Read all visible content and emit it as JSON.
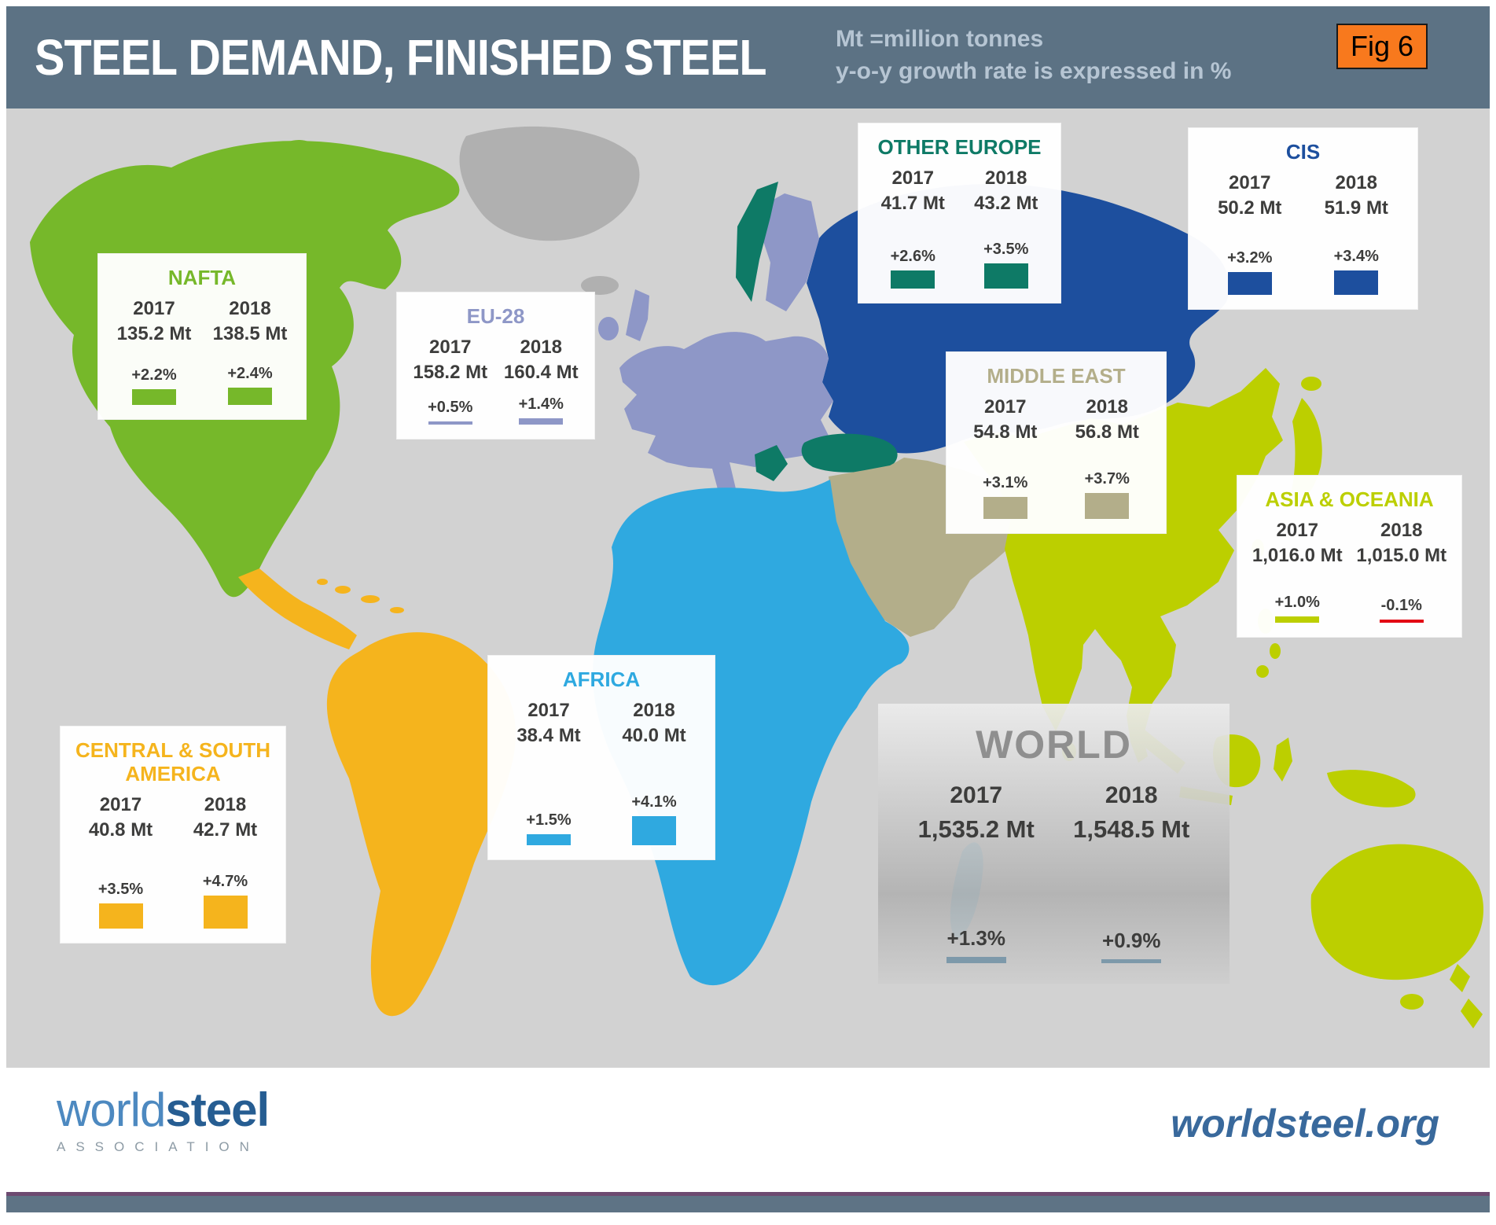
{
  "header": {
    "title": "STEEL DEMAND, FINISHED STEEL",
    "legend_line1": "Mt =million tonnes",
    "legend_line2": "y-o-y growth rate is expressed in %",
    "fig_label": "Fig 6"
  },
  "chart_data": {
    "type": "bar",
    "title": "STEEL DEMAND, FINISHED STEEL",
    "unit": "Mt = million tonnes",
    "growth_unit": "y-o-y growth rate expressed in %",
    "layout": "regional data cards over world map",
    "years": [
      "2017",
      "2018"
    ],
    "negative_color": "#e30613",
    "regions": [
      {
        "name": "NAFTA",
        "color": "#76b82a",
        "values_mt": [
          135.2,
          138.5
        ],
        "values_label": [
          "135.2 Mt",
          "138.5 Mt"
        ],
        "growth": [
          "+2.2%",
          "+2.4%"
        ],
        "growth_pct": [
          2.2,
          2.4
        ]
      },
      {
        "name": "EU-28",
        "color": "#8e97c7",
        "values_mt": [
          158.2,
          160.4
        ],
        "values_label": [
          "158.2 Mt",
          "160.4 Mt"
        ],
        "growth": [
          "+0.5%",
          "+1.4%"
        ],
        "growth_pct": [
          0.5,
          1.4
        ],
        "bar_scale": 6
      },
      {
        "name": "OTHER EUROPE",
        "color": "#0e7a66",
        "values_mt": [
          41.7,
          43.2
        ],
        "values_label": [
          "41.7 Mt",
          "43.2 Mt"
        ],
        "growth": [
          "+2.6%",
          "+3.5%"
        ],
        "growth_pct": [
          2.6,
          3.5
        ]
      },
      {
        "name": "CIS",
        "color": "#1d4f9e",
        "values_mt": [
          50.2,
          51.9
        ],
        "values_label": [
          "50.2 Mt",
          "51.9 Mt"
        ],
        "growth": [
          "+3.2%",
          "+3.4%"
        ],
        "growth_pct": [
          3.2,
          3.4
        ]
      },
      {
        "name": "MIDDLE EAST",
        "color": "#b3ae8a",
        "values_mt": [
          54.8,
          56.8
        ],
        "values_label": [
          "54.8 Mt",
          "56.8 Mt"
        ],
        "growth": [
          "+3.1%",
          "+3.7%"
        ],
        "growth_pct": [
          3.1,
          3.7
        ]
      },
      {
        "name": "ASIA & OCEANIA",
        "color": "#bccf00",
        "values_mt": [
          1016.0,
          1015.0
        ],
        "values_label": [
          "1,016.0 Mt",
          "1,015.0 Mt"
        ],
        "growth": [
          "+1.0%",
          "-0.1%"
        ],
        "growth_pct": [
          1.0,
          -0.1
        ],
        "bar_scale": 8
      },
      {
        "name": "AFRICA",
        "color": "#2fa9e0",
        "values_mt": [
          38.4,
          40.0
        ],
        "values_label": [
          "38.4 Mt",
          "40.0 Mt"
        ],
        "growth": [
          "+1.5%",
          "+4.1%"
        ],
        "growth_pct": [
          1.5,
          4.1
        ]
      },
      {
        "name": "CENTRAL & SOUTH AMERICA",
        "color": "#f5b41d",
        "values_mt": [
          40.8,
          42.7
        ],
        "values_label": [
          "40.8 Mt",
          "42.7 Mt"
        ],
        "growth": [
          "+3.5%",
          "+4.7%"
        ],
        "growth_pct": [
          3.5,
          4.7
        ]
      },
      {
        "name": "WORLD",
        "color": "#7d99aa",
        "title_color": "#8f8f8f",
        "values_mt": [
          1535.2,
          1548.5
        ],
        "values_label": [
          "1,535.2 Mt",
          "1,548.5 Mt"
        ],
        "growth": [
          "+1.3%",
          "+0.9%"
        ],
        "growth_pct": [
          1.3,
          0.9
        ],
        "bar_scale": 6
      }
    ]
  },
  "colors": {
    "header_bg": "#5c7284",
    "fig_bg": "#f8791d",
    "ocean": "#d2d2d2",
    "unassigned_land": "#b0b0b0"
  },
  "footer": {
    "logo_world": "world",
    "logo_steel": "steel",
    "association": "ASSOCIATION",
    "website": "worldsteel.org"
  }
}
